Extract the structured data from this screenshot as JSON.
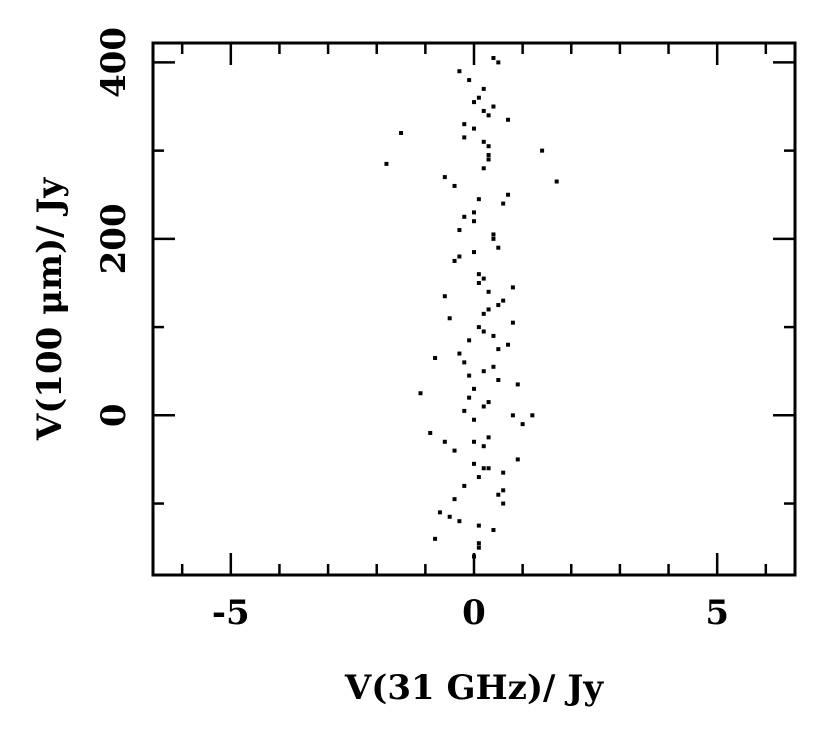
{
  "chart_data": {
    "type": "scatter",
    "x_label": "V(31 GHz)/ Jy",
    "y_label": "V(100 μm)/ Jy",
    "xlim": [
      -6.6,
      6.6
    ],
    "ylim": [
      -181,
      422
    ],
    "xticks": [
      -5,
      0,
      5
    ],
    "yticks": [
      0,
      200,
      400
    ],
    "xminorticks": [
      -6,
      -4,
      -3,
      -2,
      -1,
      1,
      2,
      3,
      4,
      6
    ],
    "yminorticks": [
      -100,
      100,
      300
    ],
    "color": "#000000",
    "series": [
      {
        "color": "#000000",
        "x": [
          0.1,
          -0.3,
          0.5,
          0.2,
          -0.6,
          0.8,
          0.0,
          -0.2,
          0.4,
          0.3,
          -0.8,
          0.6,
          0.1,
          -0.4,
          1.0,
          -0.1,
          0.2,
          0.7,
          -0.5,
          0.3,
          0.0,
          0.4,
          -0.2,
          0.9,
          -0.9,
          0.2,
          0.5,
          -0.3,
          0.1,
          0.6,
          -0.7,
          0.3,
          0.0,
          1.2,
          -1.1,
          0.4,
          -0.1,
          0.2,
          0.8,
          -0.4,
          0.1,
          0.5,
          -0.3,
          0.0,
          0.7,
          -0.6,
          0.3,
          0.2,
          -0.2,
          0.4,
          0.1,
          -0.5,
          0.6,
          0.0,
          0.3,
          -0.2,
          0.9,
          -0.8,
          0.2,
          0.5,
          0.1,
          -0.3,
          0.4,
          0.0,
          0.6,
          -0.4,
          0.2,
          1.4,
          -1.5,
          0.3,
          0.1,
          -0.1,
          0.5,
          0.2,
          -0.3,
          0.4,
          0.0,
          0.7,
          -0.2,
          0.3,
          0.1,
          -0.4,
          0.6,
          0.2,
          0.0,
          0.3,
          -0.1,
          0.5,
          0.8,
          -0.6,
          0.2,
          0.0,
          0.4,
          -0.2,
          0.1,
          1.7,
          -1.8,
          0.3,
          0.0,
          0.2
        ],
        "values": [
          -150,
          -120,
          -90,
          -60,
          -30,
          0,
          30,
          60,
          90,
          120,
          -140,
          -100,
          -70,
          -40,
          -10,
          20,
          50,
          80,
          110,
          140,
          -160,
          -130,
          -80,
          -50,
          -20,
          10,
          40,
          70,
          100,
          130,
          -110,
          -60,
          -30,
          0,
          25,
          55,
          85,
          115,
          145,
          175,
          160,
          190,
          210,
          230,
          250,
          270,
          290,
          310,
          330,
          350,
          -145,
          -115,
          -85,
          -55,
          -25,
          5,
          35,
          65,
          95,
          125,
          150,
          180,
          200,
          220,
          240,
          260,
          280,
          300,
          320,
          340,
          360,
          380,
          400,
          370,
          390,
          405,
          355,
          335,
          315,
          295,
          -125,
          -95,
          -65,
          -35,
          -5,
          15,
          45,
          75,
          105,
          135,
          155,
          185,
          205,
          225,
          245,
          265,
          285,
          305,
          325,
          345
        ]
      }
    ]
  }
}
